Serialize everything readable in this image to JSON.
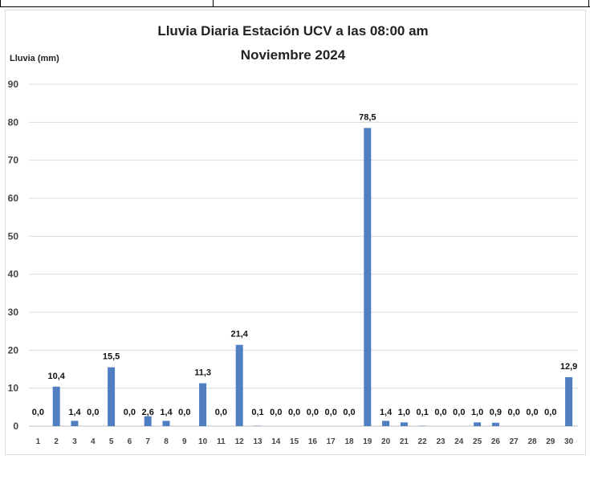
{
  "chart_data": {
    "type": "bar",
    "title_line1": "Lluvia Diaria Estación UCV a las 08:00 am",
    "title_line2": "Noviembre 2024",
    "ylabel": "Lluvia (mm)",
    "xlabel": "",
    "ylim": [
      0,
      90
    ],
    "yticks": [
      0,
      10,
      20,
      30,
      40,
      50,
      60,
      70,
      80,
      90
    ],
    "grid": true,
    "legend": "none",
    "bar_color": "#4f7ec1",
    "categories": [
      "1",
      "2",
      "3",
      "4",
      "5",
      "6",
      "7",
      "8",
      "9",
      "10",
      "11",
      "12",
      "13",
      "14",
      "15",
      "16",
      "17",
      "18",
      "19",
      "20",
      "21",
      "22",
      "23",
      "24",
      "25",
      "26",
      "27",
      "28",
      "29",
      "30"
    ],
    "values": [
      0.0,
      10.4,
      1.4,
      0.0,
      15.5,
      0.0,
      2.6,
      1.4,
      0.0,
      11.3,
      0.0,
      21.4,
      0.1,
      0.0,
      0.0,
      0.0,
      0.0,
      0.0,
      78.5,
      1.4,
      1.0,
      0.1,
      0.0,
      0.0,
      1.0,
      0.9,
      0.0,
      0.0,
      0.0,
      12.9
    ],
    "data_labels": [
      "0,0",
      "10,4",
      "1,4",
      "0,0",
      "15,5",
      "0,0",
      "2,6",
      "1,4",
      "0,0",
      "11,3",
      "0,0",
      "21,4",
      "0,1",
      "0,0",
      "0,0",
      "0,0",
      "0,0",
      "0,0",
      "78,5",
      "1,4",
      "1,0",
      "0,1",
      "0,0",
      "0,0",
      "1,0",
      "0,9",
      "0,0",
      "0,0",
      "0,0",
      "12,9"
    ]
  }
}
